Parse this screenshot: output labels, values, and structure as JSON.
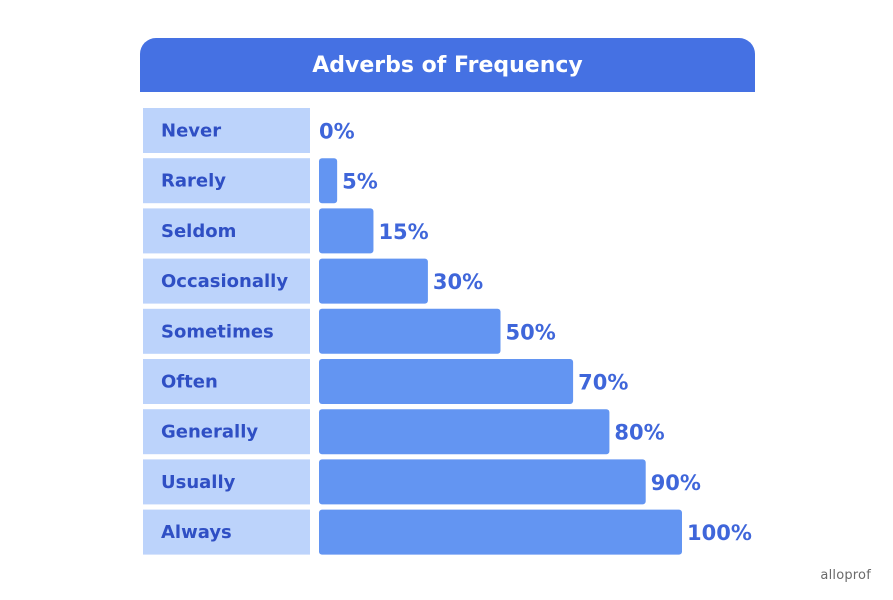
{
  "chart_data": {
    "type": "bar",
    "orientation": "horizontal",
    "title": "Adverbs of Frequency",
    "categories": [
      "Never",
      "Rarely",
      "Seldom",
      "Occasionally",
      "Sometimes",
      "Often",
      "Generally",
      "Usually",
      "Always"
    ],
    "values": [
      0,
      5,
      15,
      30,
      50,
      70,
      80,
      90,
      100
    ],
    "value_labels": [
      "0%",
      "5%",
      "15%",
      "30%",
      "50%",
      "70%",
      "80%",
      "90%",
      "100%"
    ],
    "xlim": [
      0,
      100
    ],
    "grid": false,
    "colors": {
      "header": "#4571e3",
      "label_cell": "#bcd3fb",
      "bar": "#6395f2",
      "label_text": "#2f4fc4",
      "value_text": "#3f66da"
    }
  },
  "brand": "alloprof"
}
